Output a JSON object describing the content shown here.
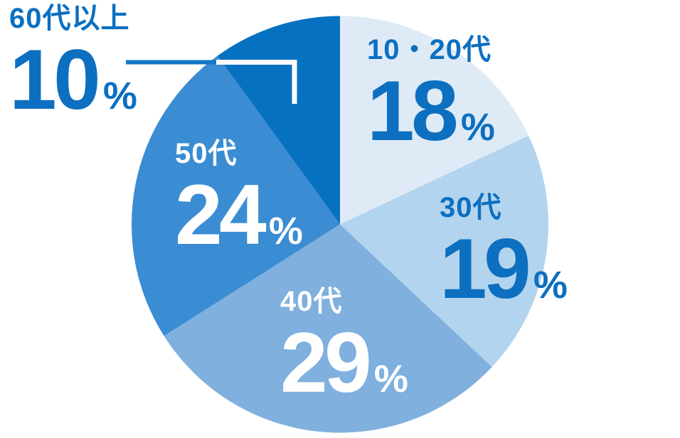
{
  "chart_data": {
    "type": "pie",
    "title": "",
    "unit": "%",
    "percent_symbol": "%",
    "start_angle_deg": 0,
    "direction": "clockwise",
    "legend_position": "none",
    "grid": false,
    "segments": [
      {
        "label": "10・20代",
        "value": 18,
        "color": "#DEEAF6",
        "label_color": "#0C6FC0",
        "label_placement": "inside"
      },
      {
        "label": "30代",
        "value": 19,
        "color": "#B3D4EE",
        "label_color": "#0C6FC0",
        "label_placement": "inside"
      },
      {
        "label": "40代",
        "value": 29,
        "color": "#7FB0DE",
        "label_color": "#FFFFFF",
        "label_placement": "inside"
      },
      {
        "label": "50代",
        "value": 24,
        "color": "#3A8CD3",
        "label_color": "#FFFFFF",
        "label_placement": "inside"
      },
      {
        "label": "60代以上",
        "value": 10,
        "color": "#0771C1",
        "label_color": "#0C6FC0",
        "label_placement": "outside-callout"
      }
    ],
    "callout": {
      "target_segment": "60代以上",
      "outer_color": "#1478C6",
      "inner_color": "#FFFFFF"
    }
  }
}
